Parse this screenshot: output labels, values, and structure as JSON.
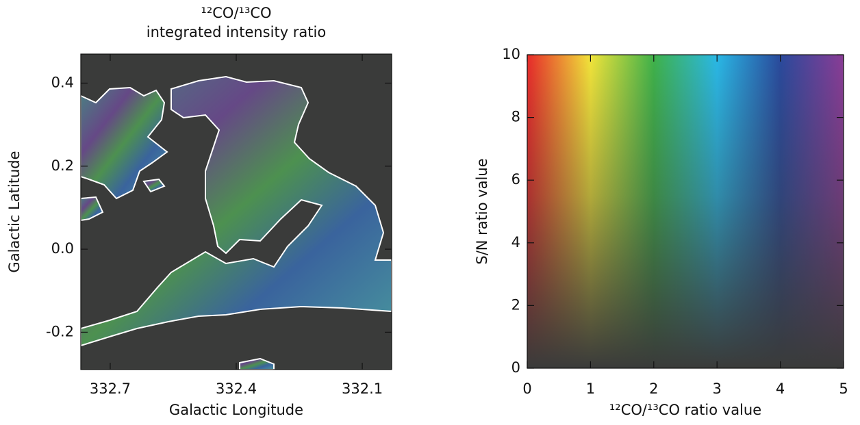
{
  "chart_data": [
    {
      "type": "image",
      "title": [
        "¹²CO/¹³CO",
        "integrated intensity ratio"
      ],
      "xlabel": "Galactic Longitude",
      "ylabel": "Galactic Latitude",
      "xlim": [
        332.77,
        332.03
      ],
      "ylim": [
        -0.29,
        0.47
      ],
      "xticks": [
        332.7,
        332.4,
        332.1
      ],
      "yticks": [
        -0.2,
        {
          "value": 0,
          "label": "0.0"
        },
        0.2,
        0.4
      ],
      "background": "#3a3b3a",
      "contour_color": "#ffffff"
    },
    {
      "type": "colormap",
      "xlabel": "¹²CO/¹³CO ratio value",
      "ylabel": "S/N ratio value",
      "xlim": [
        0,
        5
      ],
      "ylim": [
        0,
        10
      ],
      "xticks": [
        0,
        1,
        2,
        3,
        4,
        5
      ],
      "yticks": [
        0,
        2,
        4,
        6,
        8,
        10
      ],
      "colors": [
        "#e82a2a",
        "#f2e43a",
        "#3fb24a",
        "#2ab8e6",
        "#2a4a9c",
        "#8a3c96"
      ],
      "background": "#3a3b3a"
    }
  ]
}
